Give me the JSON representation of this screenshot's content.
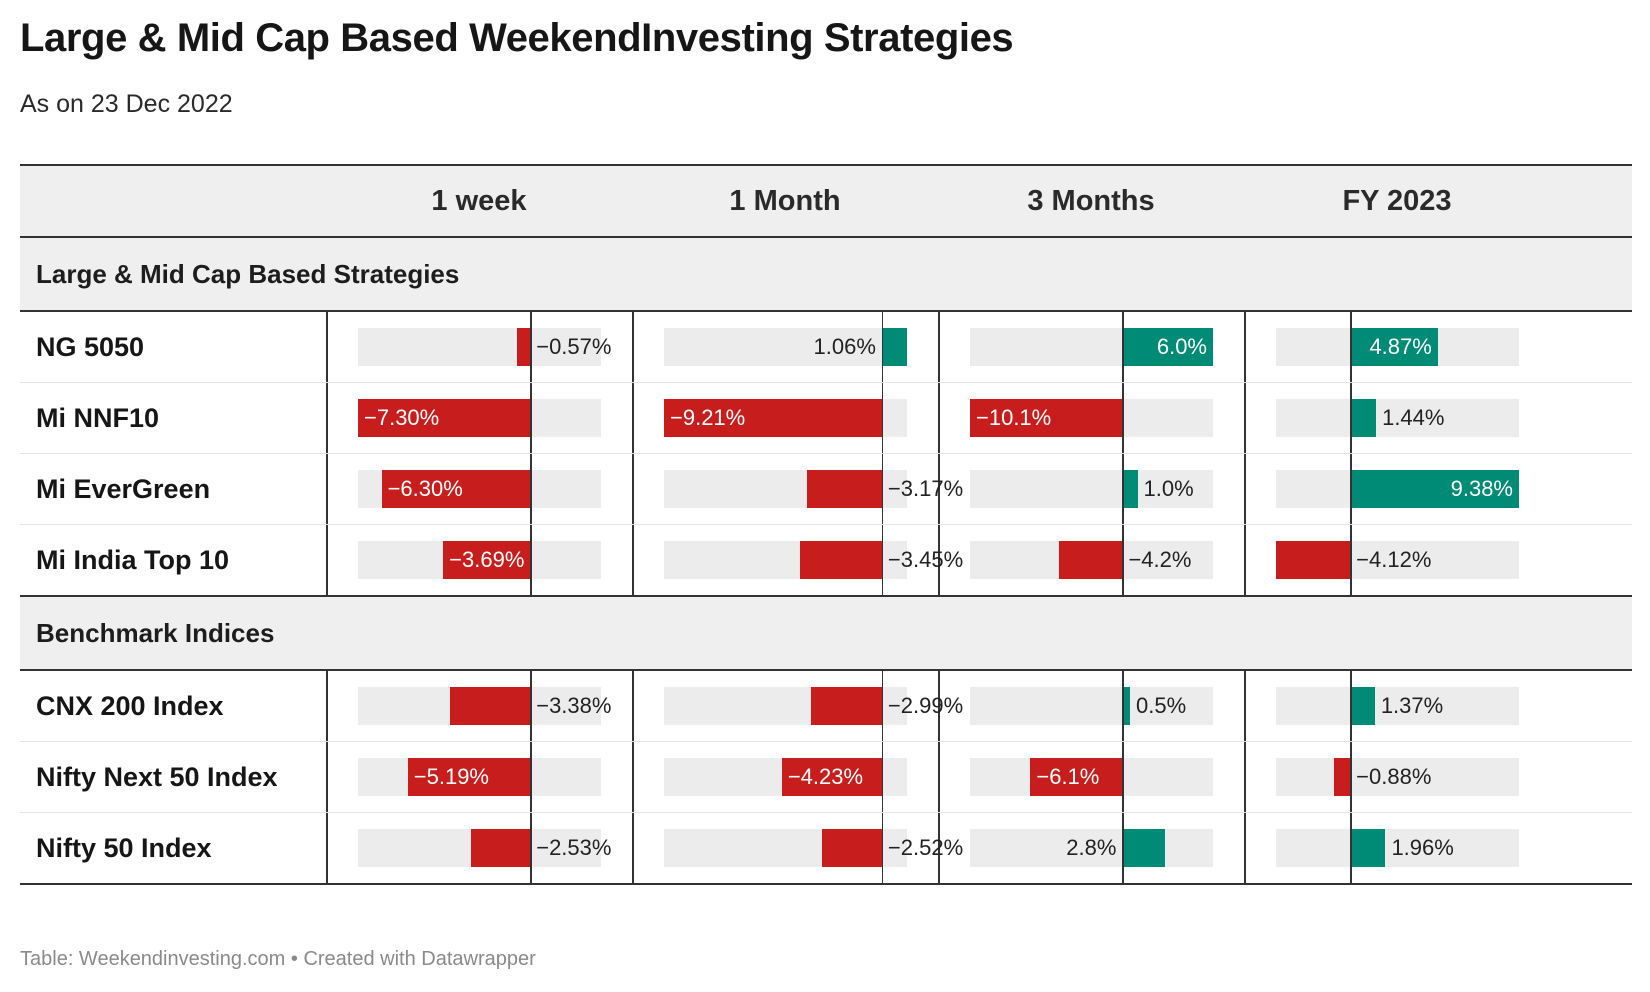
{
  "title": "Large & Mid Cap Based WeekendInvesting Strategies",
  "subtitle": "As on 23 Dec 2022",
  "footer": "Table: Weekendinvesting.com • Created with Datawrapper",
  "colors": {
    "negative": "#c71e1d",
    "positive": "#008b76",
    "header_bg": "#efefef",
    "bar_bg": "#ececec"
  },
  "chart_data": {
    "type": "table",
    "columns": [
      "1 week",
      "1 Month",
      "3 Months",
      "FY 2023"
    ],
    "column_ranges": [
      [
        -7.3,
        3.0
      ],
      [
        -9.21,
        1.06
      ],
      [
        -10.1,
        6.0
      ],
      [
        -4.12,
        9.38
      ]
    ],
    "groups": [
      {
        "name": "Large & Mid Cap Based Strategies",
        "rows": [
          {
            "name": "NG 5050",
            "values": [
              -0.57,
              1.06,
              6.0,
              4.87
            ],
            "labels": [
              "−0.57%",
              "1.06%",
              "6.0%",
              "4.87%"
            ]
          },
          {
            "name": "Mi NNF10",
            "values": [
              -7.3,
              -9.21,
              -10.1,
              1.44
            ],
            "labels": [
              "−7.30%",
              "−9.21%",
              "−10.1%",
              "1.44%"
            ]
          },
          {
            "name": "Mi EverGreen",
            "values": [
              -6.3,
              -3.17,
              1.0,
              9.38
            ],
            "labels": [
              "−6.30%",
              "−3.17%",
              "1.0%",
              "9.38%"
            ]
          },
          {
            "name": "Mi India Top 10",
            "values": [
              -3.69,
              -3.45,
              -4.2,
              -4.12
            ],
            "labels": [
              "−3.69%",
              "−3.45%",
              "−4.2%",
              "−4.12%"
            ]
          }
        ]
      },
      {
        "name": "Benchmark Indices",
        "rows": [
          {
            "name": "CNX 200 Index",
            "values": [
              -3.38,
              -2.99,
              0.5,
              1.37
            ],
            "labels": [
              "−3.38%",
              "−2.99%",
              "0.5%",
              "1.37%"
            ]
          },
          {
            "name": "Nifty Next 50 Index",
            "values": [
              -5.19,
              -4.23,
              -6.1,
              -0.88
            ],
            "labels": [
              "−5.19%",
              "−4.23%",
              "−6.1%",
              "−0.88%"
            ]
          },
          {
            "name": "Nifty 50 Index",
            "values": [
              -2.53,
              -2.52,
              2.8,
              1.96
            ],
            "labels": [
              "−2.53%",
              "−2.52%",
              "2.8%",
              "1.96%"
            ]
          }
        ]
      }
    ]
  }
}
